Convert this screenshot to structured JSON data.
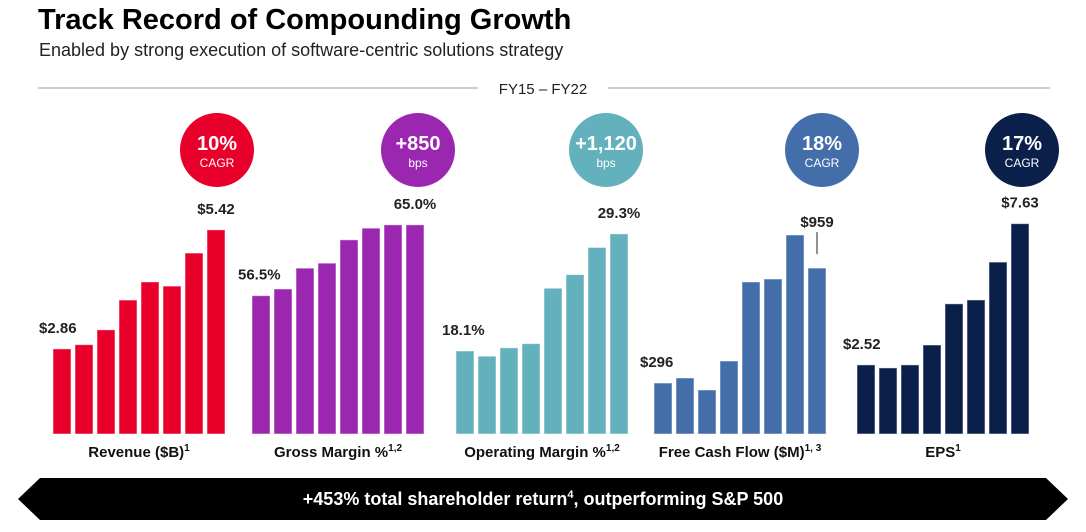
{
  "header": {
    "title": "Track Record of Compounding Growth",
    "subtitle": "Enabled by strong execution of software-centric solutions strategy",
    "period": "FY15 – FY22"
  },
  "banner": {
    "text": "+453% total shareholder return",
    "sup": "4",
    "text2": ", outperforming S&P 500"
  },
  "chart_data": [
    {
      "type": "bar",
      "name": "revenue",
      "label": "Revenue ($B)",
      "sup": "1",
      "color": "#e8002a",
      "badge": {
        "value": "10%",
        "unit": "CAGR"
      },
      "first_label": "$2.86",
      "last_label": "$5.42",
      "values": [
        2.86,
        2.95,
        3.27,
        3.91,
        4.3,
        4.21,
        4.92,
        5.42
      ],
      "ylim": [
        1.03,
        5.76
      ]
    },
    {
      "type": "bar",
      "name": "gross-margin",
      "label": "Gross Margin %",
      "sup": "1,2",
      "color": "#9b27b0",
      "badge": {
        "value": "+850",
        "unit": "bps"
      },
      "first_label": "56.5%",
      "last_label": "65.0%",
      "values": [
        56.5,
        57.3,
        59.8,
        60.4,
        63.2,
        64.6,
        65.0,
        65.0
      ],
      "ylim": [
        39.9,
        66.3
      ]
    },
    {
      "type": "bar",
      "name": "operating-margin",
      "label": "Operating Margin %",
      "sup": "1,2",
      "color": "#62b1bc",
      "badge": {
        "value": "+1,120",
        "unit": "bps"
      },
      "first_label": "18.1%",
      "last_label": "29.3%",
      "values": [
        18.1,
        17.6,
        18.4,
        18.8,
        24.1,
        25.4,
        28.0,
        29.3
      ],
      "ylim": [
        10.16,
        31.2
      ]
    },
    {
      "type": "bar",
      "name": "free-cash-flow",
      "label": "Free Cash Flow ($M)",
      "sup": "1, 3",
      "color": "#436ea9",
      "badge": {
        "value": "18%",
        "unit": "CAGR"
      },
      "first_label": "$296",
      "last_label": "$959",
      "values": [
        296,
        325,
        256,
        423,
        879,
        896,
        1150,
        959
      ],
      "ylim": [
        2,
        1271
      ]
    },
    {
      "type": "bar",
      "name": "eps",
      "label": "EPS",
      "sup": "1",
      "color": "#0a1f4a",
      "badge": {
        "value": "17%",
        "unit": "CAGR"
      },
      "first_label": "$2.52",
      "last_label": "$7.63",
      "values": [
        2.52,
        2.41,
        2.52,
        3.24,
        4.73,
        4.87,
        6.24,
        7.63
      ],
      "ylim": [
        0.02,
        7.98
      ]
    }
  ]
}
